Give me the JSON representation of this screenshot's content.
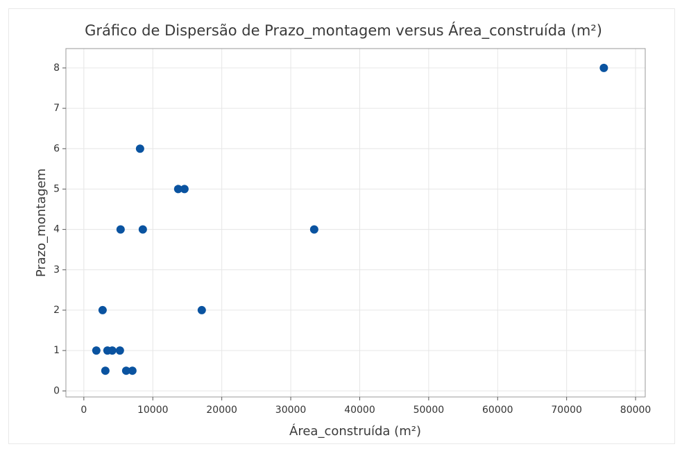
{
  "chart_data": {
    "type": "scatter",
    "title": "Gráfico de Dispersão de Prazo_montagem versus Área_construída (m²)",
    "x_label": "Área_construída (m²)",
    "y_label": "Prazo_montagem",
    "x": [
      75400,
      8150,
      13680,
      14590,
      5330,
      8550,
      33400,
      2720,
      17100,
      1810,
      3420,
      4120,
      5230,
      3120,
      6140,
      7040
    ],
    "values": [
      8,
      6,
      5,
      5,
      4,
      4,
      4,
      2,
      2,
      1,
      1,
      1,
      1,
      0.5,
      0.5,
      0.5
    ],
    "color": "#0a53a0",
    "xlim": [
      -2600,
      81400
    ],
    "ylim": [
      -0.15,
      8.48
    ],
    "xticks": [
      0,
      10000,
      20000,
      30000,
      40000,
      50000,
      60000,
      70000,
      80000
    ],
    "yticks": [
      0,
      1,
      2,
      3,
      4,
      5,
      6,
      7,
      8
    ],
    "grid": true
  }
}
